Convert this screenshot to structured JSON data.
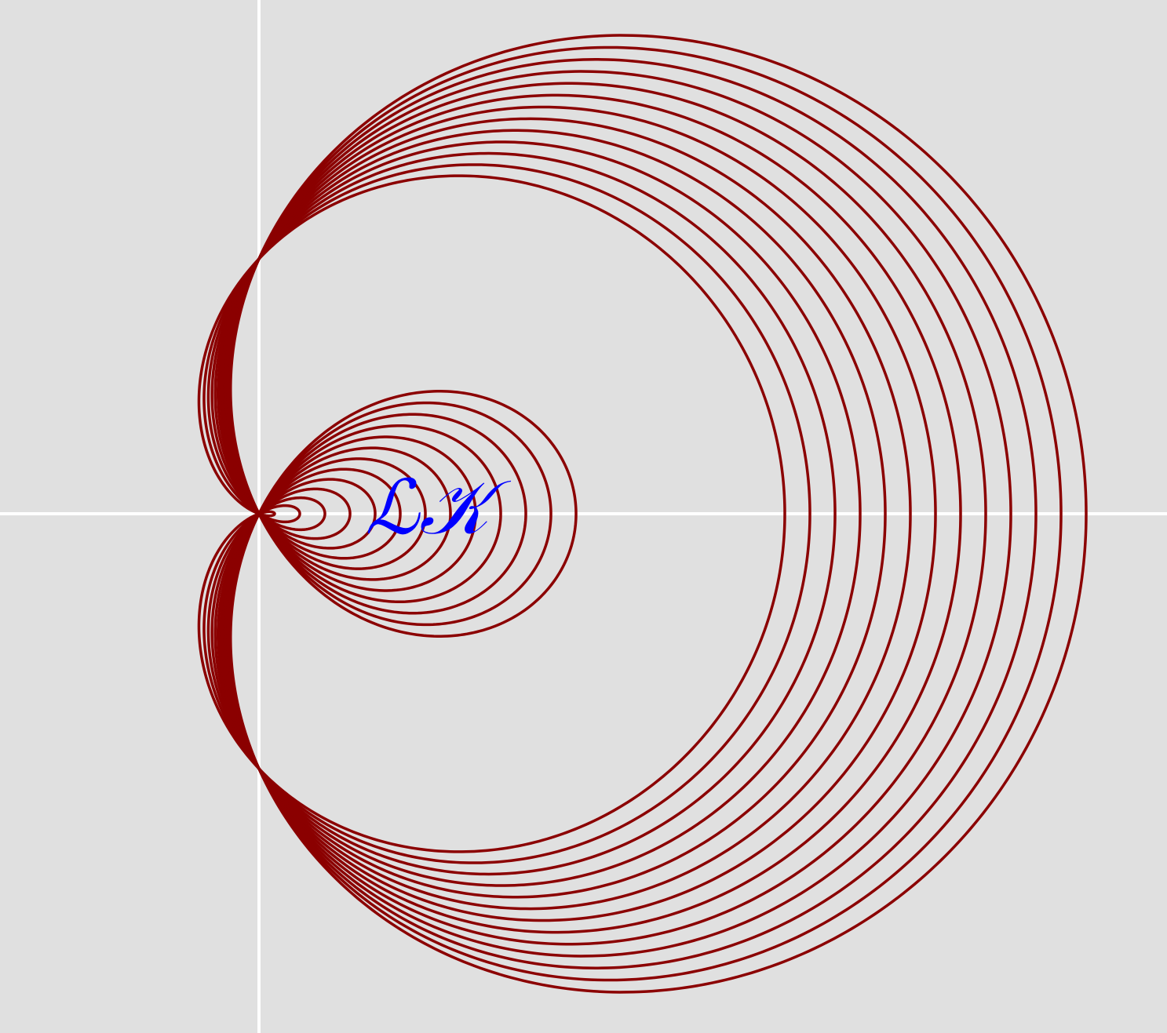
{
  "annotation": "ℒ𝒦"
}
